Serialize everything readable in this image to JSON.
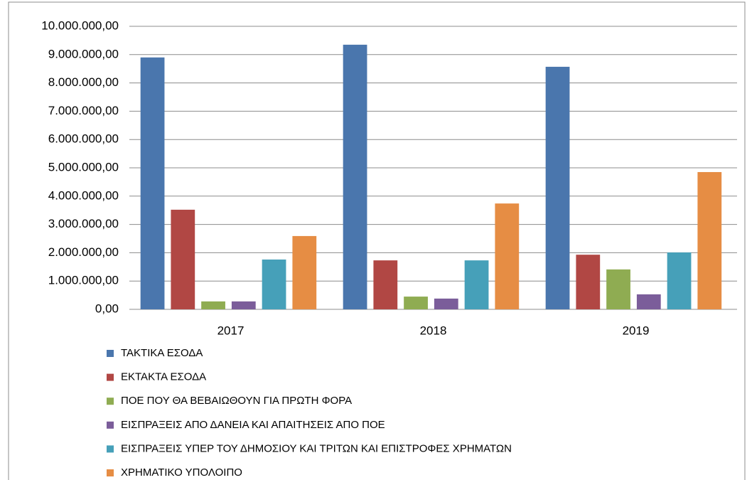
{
  "chart_data": {
    "type": "bar",
    "categories": [
      "2017",
      "2018",
      "2019"
    ],
    "series": [
      {
        "name": "ΤΑΚΤΙΚΑ ΕΣΟΔΑ",
        "color": "#4a76ad",
        "values": [
          8900000,
          9350000,
          8570000
        ]
      },
      {
        "name": "ΕΚΤΑΚΤΑ ΕΣΟΔΑ",
        "color": "#b14744",
        "values": [
          3520000,
          1730000,
          1930000
        ]
      },
      {
        "name": "ΠΟΕ ΠΟΥ ΘΑ ΒΕΒΑΙΩΘΟΥΝ ΓΙΑ ΠΡΩΤΗ ΦΟΡΑ",
        "color": "#8fac52",
        "values": [
          280000,
          450000,
          1410000
        ]
      },
      {
        "name": "ΕΙΣΠΡΑΞΕΙΣ ΑΠΟ ΔΑΝΕΙΑ ΚΑΙ ΑΠΑΙΤΗΣΕΙΣ ΑΠΟ ΠΟΕ",
        "color": "#7b5d9a",
        "values": [
          280000,
          380000,
          530000
        ]
      },
      {
        "name": "ΕΙΣΠΡΑΞΕΙΣ ΥΠΕΡ ΤΟΥ ΔΗΜΟΣΙΟΥ ΚΑΙ ΤΡΙΤΩΝ ΚΑΙ ΕΠΙΣΤΡΟΦΕΣ ΧΡΗΜΑΤΩΝ",
        "color": "#46a0b9",
        "values": [
          1760000,
          1730000,
          2010000
        ]
      },
      {
        "name": "ΧΡΗΜΑΤΙΚΟ ΥΠΟΛΟΙΠΟ",
        "color": "#e68d44",
        "values": [
          2590000,
          3740000,
          4850000
        ]
      }
    ],
    "ylim": [
      0,
      10000000
    ],
    "yticks": [
      {
        "value": 0,
        "label": "0,00"
      },
      {
        "value": 1000000,
        "label": "1.000.000,00"
      },
      {
        "value": 2000000,
        "label": "2.000.000,00"
      },
      {
        "value": 3000000,
        "label": "3.000.000,00"
      },
      {
        "value": 4000000,
        "label": "4.000.000,00"
      },
      {
        "value": 5000000,
        "label": "5.000.000,00"
      },
      {
        "value": 6000000,
        "label": "6.000.000,00"
      },
      {
        "value": 7000000,
        "label": "7.000.000,00"
      },
      {
        "value": 8000000,
        "label": "8.000.000,00"
      },
      {
        "value": 9000000,
        "label": "9.000.000,00"
      },
      {
        "value": 10000000,
        "label": "10.000.000,00"
      }
    ],
    "grid": true,
    "legend": "bottom"
  }
}
